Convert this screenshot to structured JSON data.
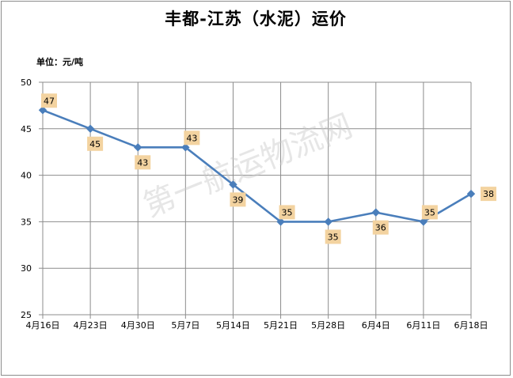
{
  "chart_data": {
    "type": "line",
    "title": "丰都-江苏（水泥）运价",
    "unit_label": "单位：元/吨",
    "categories": [
      "4月16日",
      "4月23日",
      "4月30日",
      "5月7日",
      "5月14日",
      "5月21日",
      "5月28日",
      "6月4日",
      "6月11日",
      "6月18日"
    ],
    "values": [
      47,
      45,
      43,
      43,
      39,
      35,
      35,
      36,
      35,
      38
    ],
    "label_side": [
      "above",
      "below",
      "below",
      "above",
      "below",
      "above",
      "below",
      "below",
      "above",
      "right"
    ],
    "ylim": [
      25,
      50
    ],
    "yticks": [
      25,
      30,
      35,
      40,
      45,
      50
    ],
    "grid": true,
    "line_color": "#4a7ebb",
    "label_bg": "#f3d3a0",
    "watermark": "第一航运物流网"
  }
}
